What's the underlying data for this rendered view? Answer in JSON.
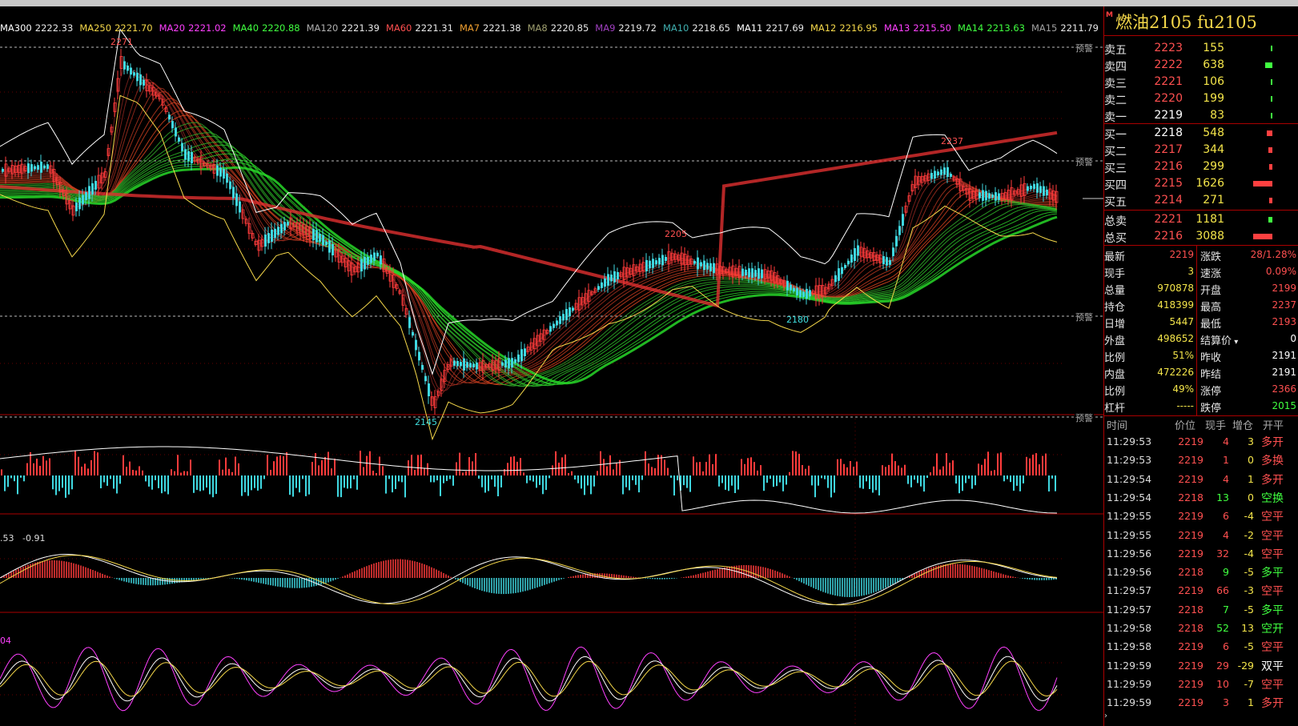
{
  "chart": {
    "ma_legend": [
      {
        "name": "MA300",
        "value": "2222.33",
        "color": "#ffffff"
      },
      {
        "name": "MA250",
        "value": "2221.70",
        "color": "#f5d84a"
      },
      {
        "name": "MA20",
        "value": "2221.02",
        "color": "#ff40ff"
      },
      {
        "name": "MA40",
        "value": "2220.88",
        "color": "#40ff40"
      },
      {
        "name": "MA120",
        "value": "2221.39",
        "color": "#b0b0b0"
      },
      {
        "name": "MA60",
        "value": "2221.31",
        "color": "#ff5050"
      },
      {
        "name": "MA7",
        "value": "2221.38",
        "color": "#f0a030"
      },
      {
        "name": "MA8",
        "value": "2220.85",
        "color": "#a0a070"
      },
      {
        "name": "MA9",
        "value": "2219.72",
        "color": "#a040c0"
      },
      {
        "name": "MA10",
        "value": "2218.65",
        "color": "#40b0b0"
      },
      {
        "name": "MA11",
        "value": "2217.69",
        "color": "#ffffff"
      },
      {
        "name": "MA12",
        "value": "2216.95",
        "color": "#f5d84a"
      },
      {
        "name": "MA13",
        "value": "2215.50",
        "color": "#ff40ff"
      },
      {
        "name": "MA14",
        "value": "2213.63",
        "color": "#40ff40"
      },
      {
        "name": "MA15",
        "value": "2211.79",
        "color": "#a0a0a0"
      }
    ],
    "warn_label": "预警",
    "high_label": "2271",
    "low_label": "2145",
    "mid_high_label": "2205",
    "mid_low_label": "2180",
    "right_high_label": "2237",
    "macd_left": ".53",
    "macd_value": "-0.91",
    "kdj_left": "04"
  },
  "panel": {
    "badge": "M",
    "title": "燃油2105  fu2105",
    "sell": [
      {
        "label": "卖五",
        "price": "2223",
        "vol": "155",
        "bar": 2
      },
      {
        "label": "卖四",
        "price": "2222",
        "vol": "638",
        "bar": 9
      },
      {
        "label": "卖三",
        "price": "2221",
        "vol": "106",
        "bar": 2
      },
      {
        "label": "卖二",
        "price": "2220",
        "vol": "199",
        "bar": 2
      },
      {
        "label": "卖一",
        "price": "2219",
        "vol": "83",
        "bar": 2
      }
    ],
    "buy": [
      {
        "label": "买一",
        "price": "2218",
        "vol": "548",
        "bar": 7
      },
      {
        "label": "买二",
        "price": "2217",
        "vol": "344",
        "bar": 5
      },
      {
        "label": "买三",
        "price": "2216",
        "vol": "299",
        "bar": 4
      },
      {
        "label": "买四",
        "price": "2215",
        "vol": "1626",
        "bar": 24
      },
      {
        "label": "买五",
        "price": "2214",
        "vol": "271",
        "bar": 4
      }
    ],
    "totals": [
      {
        "label": "总卖",
        "price": "2221",
        "vol": "1181",
        "bar": 5
      },
      {
        "label": "总买",
        "price": "2216",
        "vol": "3088",
        "bar": 24
      }
    ],
    "stats": [
      {
        "l1": "最新",
        "v1": "2219",
        "c1": "#ff5050",
        "l2": "涨跌",
        "v2": "28/1.28%",
        "c2": "#ff5050"
      },
      {
        "l1": "现手",
        "v1": "3",
        "c1": "#f4e54a",
        "l2": "速涨",
        "v2": "0.09%",
        "c2": "#ff5050"
      },
      {
        "l1": "总量",
        "v1": "970878",
        "c1": "#f4e54a",
        "l2": "开盘",
        "v2": "2199",
        "c2": "#ff5050"
      },
      {
        "l1": "持仓",
        "v1": "418399",
        "c1": "#f4e54a",
        "l2": "最高",
        "v2": "2237",
        "c2": "#ff5050"
      },
      {
        "l1": "日增",
        "v1": "5447",
        "c1": "#f4e54a",
        "l2": "最低",
        "v2": "2193",
        "c2": "#ff5050"
      },
      {
        "l1": "外盘",
        "v1": "498652",
        "c1": "#f4e54a",
        "l2": "结算价",
        "v2": "0",
        "c2": "#ffffff"
      },
      {
        "l1": "比例",
        "v1": "51%",
        "c1": "#f4e54a",
        "l2": "昨收",
        "v2": "2191",
        "c2": "#ffffff"
      },
      {
        "l1": "内盘",
        "v1": "472226",
        "c1": "#f4e54a",
        "l2": "昨结",
        "v2": "2191",
        "c2": "#ffffff"
      },
      {
        "l1": "比例",
        "v1": "49%",
        "c1": "#f4e54a",
        "l2": "涨停",
        "v2": "2366",
        "c2": "#ff5050"
      },
      {
        "l1": "杠杆",
        "v1": "-----",
        "c1": "#f4e54a",
        "l2": "跌停",
        "v2": "2015",
        "c2": "#40ff40"
      }
    ],
    "trades_header": {
      "time": "时间",
      "price": "价位",
      "vol": "现手",
      "oi": "增仓",
      "type": "开平"
    },
    "trades": [
      {
        "time": "11:29:53",
        "price": "2219",
        "pc": "#ff5050",
        "vol": "4",
        "vc": "#ff5050",
        "oi": "3",
        "type": "多开",
        "tc": "#ff5050"
      },
      {
        "time": "11:29:53",
        "price": "2219",
        "pc": "#ff5050",
        "vol": "1",
        "vc": "#ff5050",
        "oi": "0",
        "type": "多换",
        "tc": "#ff5050"
      },
      {
        "time": "11:29:54",
        "price": "2219",
        "pc": "#ff5050",
        "vol": "4",
        "vc": "#ff5050",
        "oi": "1",
        "type": "多开",
        "tc": "#ff5050"
      },
      {
        "time": "11:29:54",
        "price": "2218",
        "pc": "#ff5050",
        "vol": "13",
        "vc": "#40ff40",
        "oi": "0",
        "type": "空换",
        "tc": "#40ff40"
      },
      {
        "time": "11:29:55",
        "price": "2219",
        "pc": "#ff5050",
        "vol": "6",
        "vc": "#ff5050",
        "oi": "-4",
        "type": "空平",
        "tc": "#ff5050"
      },
      {
        "time": "11:29:55",
        "price": "2219",
        "pc": "#ff5050",
        "vol": "4",
        "vc": "#ff5050",
        "oi": "-2",
        "type": "空平",
        "tc": "#ff5050"
      },
      {
        "time": "11:29:56",
        "price": "2219",
        "pc": "#ff5050",
        "vol": "32",
        "vc": "#ff5050",
        "oi": "-4",
        "type": "空平",
        "tc": "#ff5050"
      },
      {
        "time": "11:29:56",
        "price": "2218",
        "pc": "#ff5050",
        "vol": "9",
        "vc": "#40ff40",
        "oi": "-5",
        "type": "多平",
        "tc": "#40ff40"
      },
      {
        "time": "11:29:57",
        "price": "2219",
        "pc": "#ff5050",
        "vol": "66",
        "vc": "#ff5050",
        "oi": "-3",
        "type": "空平",
        "tc": "#ff5050"
      },
      {
        "time": "11:29:57",
        "price": "2218",
        "pc": "#ff5050",
        "vol": "7",
        "vc": "#40ff40",
        "oi": "-5",
        "type": "多平",
        "tc": "#40ff40"
      },
      {
        "time": "11:29:58",
        "price": "2218",
        "pc": "#ff5050",
        "vol": "52",
        "vc": "#40ff40",
        "oi": "13",
        "type": "空开",
        "tc": "#40ff40"
      },
      {
        "time": "11:29:58",
        "price": "2219",
        "pc": "#ff5050",
        "vol": "6",
        "vc": "#ff5050",
        "oi": "-5",
        "type": "空平",
        "tc": "#ff5050"
      },
      {
        "time": "11:29:59",
        "price": "2219",
        "pc": "#ff5050",
        "vol": "29",
        "vc": "#ff5050",
        "oi": "-29",
        "type": "双平",
        "tc": "#ffffff"
      },
      {
        "time": "11:29:59",
        "price": "2219",
        "pc": "#ff5050",
        "vol": "10",
        "vc": "#ff5050",
        "oi": "-7",
        "type": "空平",
        "tc": "#ff5050"
      },
      {
        "time": "11:29:59",
        "price": "2219",
        "pc": "#ff5050",
        "vol": "3",
        "vc": "#ff5050",
        "oi": "1",
        "type": "多开",
        "tc": "#ff5050"
      }
    ]
  }
}
